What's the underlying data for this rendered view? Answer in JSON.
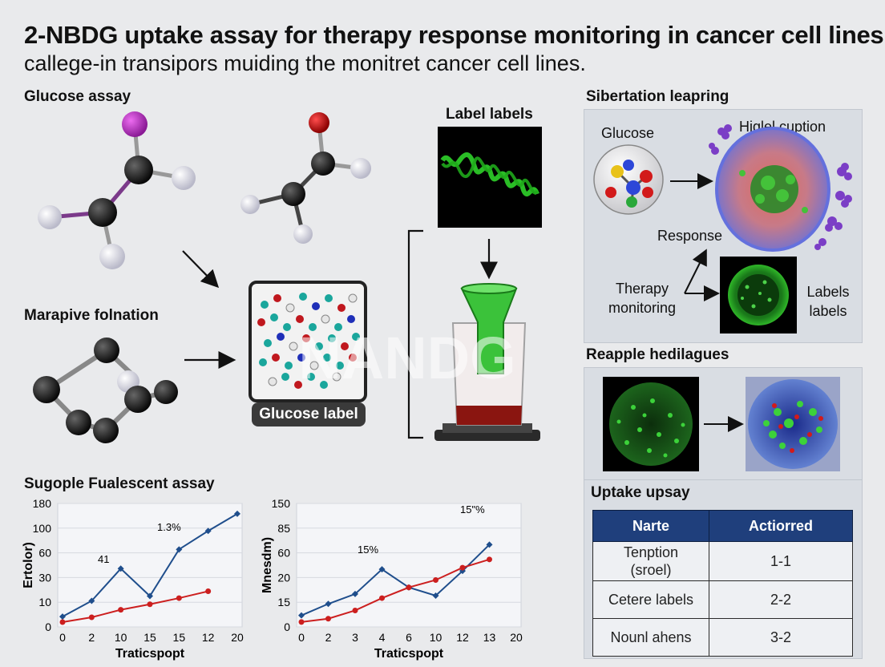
{
  "header": {
    "title": "2-NBDG uptake assay for therapy response monitoring in cancer cell lines",
    "subtitle": "callege-in transipors muiding the monitret cancer cell lines."
  },
  "left": {
    "glucose_assay_heading": "Glucose assay",
    "marapive_heading": "Marapive folnation",
    "glucose_label": "Glucose label",
    "watermark": "NANDG"
  },
  "middle": {
    "label_labels_heading": "Label labels"
  },
  "right_top": {
    "heading": "Sibertation leapring",
    "glucose": "Glucose",
    "higlel": "Higlel cuption",
    "response": "Response",
    "therapy": "Therapy monitoring",
    "labels": "Labels labels"
  },
  "right_mid": {
    "heading": "Reapple hedilagues"
  },
  "right_bottom": {
    "heading": "Uptake upsay",
    "table": {
      "headers": [
        "Narte",
        "Actiorred"
      ],
      "rows": [
        [
          "Tenption (sroel)",
          "1-1"
        ],
        [
          "Cetere labels",
          "2-2"
        ],
        [
          "Nounl ahens",
          "3-2"
        ]
      ]
    }
  },
  "bottom": {
    "heading": "Sugople Fualescent assay"
  },
  "colors": {
    "series_blue": "#1f4e8c",
    "series_red": "#cc1f1f",
    "table_header": "#1f3f7c",
    "fluor_green": "#39d12f"
  },
  "chart_data": [
    {
      "type": "line",
      "ylabel": "Ertolor)",
      "xlabel": "Traticspopt",
      "x_ticks": [
        "0",
        "2",
        "10",
        "15",
        "15",
        "12",
        "20"
      ],
      "y_ticks": [
        "0",
        "10",
        "30",
        "60",
        "100",
        "180"
      ],
      "annotations": [
        "41",
        "1.3%"
      ],
      "series": [
        {
          "color": "blue",
          "values": [
            15,
            38,
            85,
            45,
            113,
            140,
            165
          ]
        },
        {
          "color": "red",
          "values": [
            7,
            14,
            25,
            33,
            42,
            52
          ]
        }
      ]
    },
    {
      "type": "line",
      "ylabel": "Mnesdm)",
      "xlabel": "Traticspopt",
      "x_ticks": [
        "0",
        "2",
        "3",
        "4",
        "6",
        "10",
        "12",
        "13",
        "20"
      ],
      "y_ticks": [
        "0",
        "15",
        "20",
        "60",
        "85",
        "150"
      ],
      "annotations": [
        "15%",
        "15\"%"
      ],
      "series": [
        {
          "color": "blue",
          "values": [
            14,
            28,
            40,
            70,
            48,
            38,
            68,
            100
          ]
        },
        {
          "color": "red",
          "values": [
            6,
            10,
            20,
            35,
            48,
            57,
            72,
            82
          ]
        }
      ]
    }
  ]
}
